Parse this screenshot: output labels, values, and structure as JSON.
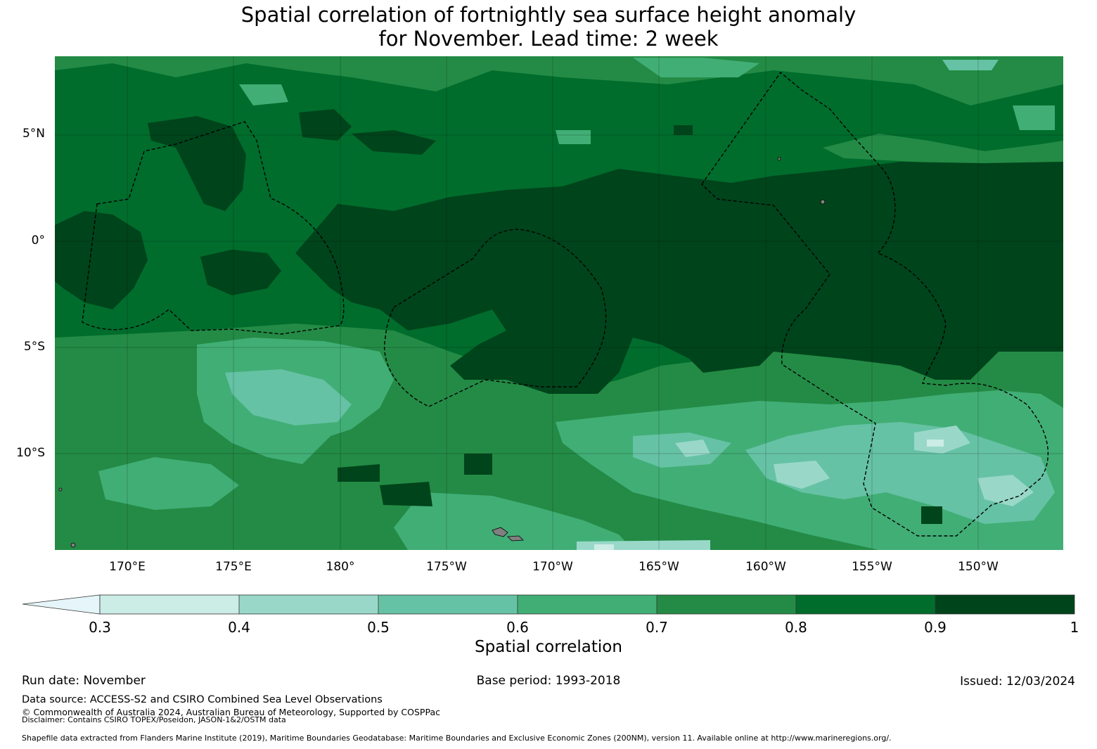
{
  "title": {
    "line1": "Spatial correlation of fortnightly sea surface height anomaly",
    "line2": "for November. Lead time: 2 week"
  },
  "map": {
    "lat_labels": [
      "5°N",
      "0°",
      "5°S",
      "10°S"
    ],
    "lon_labels": [
      "170°E",
      "175°E",
      "180°",
      "175°W",
      "170°W",
      "165°W",
      "160°W",
      "155°W",
      "150°W"
    ]
  },
  "colorbar": {
    "label": "Spatial correlation",
    "ticks": [
      "0.3",
      "0.4",
      "0.5",
      "0.6",
      "0.7",
      "0.8",
      "0.9",
      "1"
    ],
    "levels": [
      {
        "min": "<0.3",
        "color": "#e5f5f9"
      },
      {
        "min": "0.3",
        "color": "#ccece6"
      },
      {
        "min": "0.4",
        "color": "#99d8c9"
      },
      {
        "min": "0.5",
        "color": "#66c2a4"
      },
      {
        "min": "0.6",
        "color": "#41ae76"
      },
      {
        "min": "0.7",
        "color": "#238b45"
      },
      {
        "min": "0.8",
        "color": "#006d2c"
      },
      {
        "min": "0.9",
        "color": "#00441b"
      }
    ]
  },
  "footer": {
    "run_date": "Run date: November",
    "base_period": "Base period: 1993-2018",
    "issued": "Issued: 12/03/2024",
    "data_source": "Data source: ACCESS-S2 and CSIRO Combined Sea Level Observations",
    "copyright": "© Commonwealth of Australia 2024, Australian Bureau of Meteorology, Supported by COSPPac",
    "disclaimer": "Disclaimer: Contains CSIRO TOPEX/Poseidon, JASON-1&2/OSTM data",
    "shapefile": "Shapefile data extracted from Flanders Marine Institute (2019), Maritime Boundaries Geodatabase: Maritime Boundaries and Exclusive Economic Zones (200NM), version 11. Available online at http://www.marineregions.org/."
  }
}
